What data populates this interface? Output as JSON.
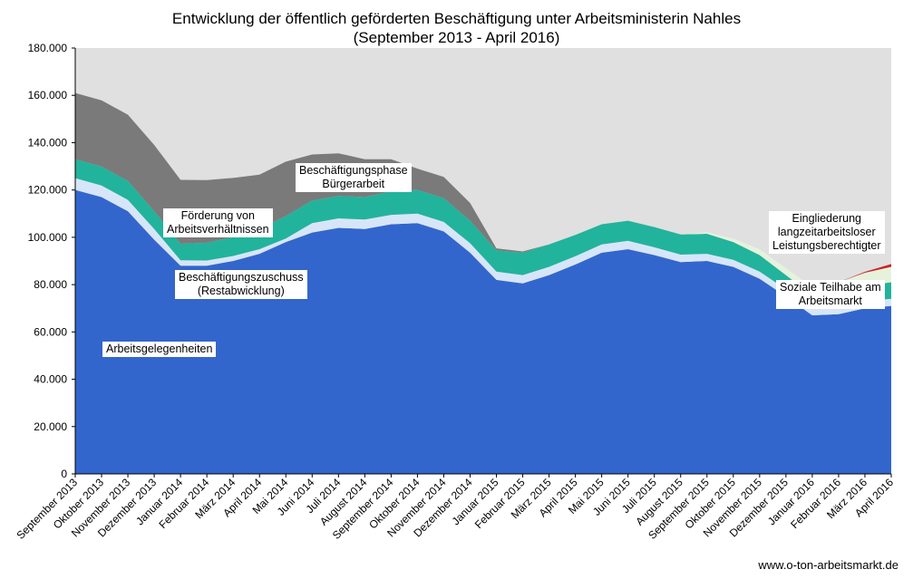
{
  "title": {
    "line1": "Entwicklung der öffentlich geförderten Beschäftigung unter Arbeitsministerin Nahles",
    "line2": "(September 2013 - April 2016)"
  },
  "source": "www.o-ton-arbeitsmarkt.de",
  "annotations": {
    "arbeitsgelegenheiten": "Arbeitsgelegenheiten",
    "bez_line1": "Beschäftigungszuschuss",
    "bez_line2": "(Restabwicklung)",
    "fav_line1": "Förderung von",
    "fav_line2": "Arbeitsverhältnissen",
    "bpb_line1": "Beschäftigungsphase",
    "bpb_line2": "Bürgerarbeit",
    "elb_line1": "Eingliederung",
    "elb_line2": "langzeitarbeitsloser",
    "elb_line3": "Leistungsberechtigter",
    "st_line1": "Soziale Teilhabe am",
    "st_line2": "Arbeitsmarkt"
  },
  "colors": {
    "plot_background": "#e0e0e0",
    "arbeitsgelegenheiten": "#3366cc",
    "beschaeftigungszuschuss": "#d6e6f8",
    "foerderung_arbeitsverhaeltnisse": "#22b39c",
    "buergerarbeit": "#7a7a7a",
    "eingliederung_langzeitarbeitsloser": "#e6f2dc",
    "soziale_teilhabe": "#cc2222"
  },
  "chart_data": {
    "type": "area",
    "stacked": true,
    "ylim": [
      0,
      180000
    ],
    "yticks": [
      0,
      20000,
      40000,
      60000,
      80000,
      100000,
      120000,
      140000,
      160000,
      180000
    ],
    "ytick_labels": [
      "0",
      "20.000",
      "40.000",
      "60.000",
      "80.000",
      "100.000",
      "120.000",
      "140.000",
      "160.000",
      "180.000"
    ],
    "grid": false,
    "legend": "none",
    "categories": [
      "September 2013",
      "Oktober 2013",
      "November 2013",
      "Dezember 2013",
      "Januar 2014",
      "Februar 2014",
      "März 2014",
      "April 2014",
      "Mai 2014",
      "Juni 2014",
      "Juli 2014",
      "August 2014",
      "September 2014",
      "Oktober 2014",
      "November 2014",
      "Dezember 2014",
      "Januar 2015",
      "Februar 2015",
      "März 2015",
      "April 2015",
      "Mai 2015",
      "Juni 2015",
      "Juli 2015",
      "August 2015",
      "September 2015",
      "Oktober 2015",
      "November 2015",
      "Dezember 2015",
      "Januar 2016",
      "Februar 2016",
      "März 2016",
      "April 2016"
    ],
    "series": [
      {
        "name": "Arbeitsgelegenheiten",
        "color_key": "arbeitsgelegenheiten",
        "values": [
          120000,
          117000,
          111000,
          99000,
          88000,
          88000,
          90000,
          93000,
          98000,
          102000,
          104000,
          103500,
          105500,
          106000,
          102500,
          93500,
          82000,
          80500,
          84000,
          88500,
          93500,
          95000,
          92500,
          89500,
          90000,
          87500,
          82500,
          75000,
          67000,
          67500,
          70000,
          71000
        ]
      },
      {
        "name": "Beschäftigungszuschuss",
        "color_key": "beschaeftigungszuschuss",
        "values": [
          5000,
          4900,
          4800,
          4500,
          2300,
          2200,
          2100,
          2000,
          1500,
          4000,
          4000,
          4000,
          4000,
          4000,
          4000,
          4000,
          3500,
          3500,
          3500,
          3500,
          3500,
          3500,
          3300,
          3200,
          3000,
          3000,
          3000,
          3000,
          3000,
          3000,
          3000,
          3000
        ]
      },
      {
        "name": "Förderung von Arbeitsverhältnissen",
        "color_key": "foerderung_arbeitsverhaeltnisse",
        "values": [
          8000,
          8000,
          8000,
          7500,
          7000,
          7500,
          8000,
          8500,
          9500,
          9500,
          9500,
          9500,
          10000,
          10000,
          10000,
          9500,
          9000,
          9500,
          9500,
          9000,
          8500,
          8500,
          8500,
          8500,
          8500,
          7500,
          7000,
          6000,
          5500,
          6000,
          6500,
          7000
        ]
      },
      {
        "name": "Beschäftigungsphase Bürgerarbeit",
        "color_key": "buergerarbeit",
        "values": [
          28000,
          28000,
          28000,
          28000,
          27000,
          26500,
          25000,
          23000,
          23000,
          19500,
          18000,
          16000,
          13500,
          9000,
          9000,
          7500,
          800,
          500,
          0,
          0,
          0,
          0,
          0,
          0,
          0,
          0,
          0,
          0,
          0,
          0,
          0,
          0
        ]
      },
      {
        "name": "Eingliederung langzeitarbeitsloser Leistungsberechtigter",
        "color_key": "eingliederung_langzeitarbeitsloser",
        "values": [
          0,
          0,
          0,
          0,
          0,
          0,
          0,
          0,
          0,
          0,
          0,
          0,
          0,
          0,
          0,
          0,
          0,
          0,
          0,
          0,
          0,
          0,
          0,
          0,
          600,
          1500,
          2500,
          3000,
          3500,
          4500,
          5500,
          6500
        ]
      },
      {
        "name": "Soziale Teilhabe am Arbeitsmarkt",
        "color_key": "soziale_teilhabe",
        "values": [
          0,
          0,
          0,
          0,
          0,
          0,
          0,
          0,
          0,
          0,
          0,
          0,
          0,
          0,
          0,
          0,
          0,
          0,
          0,
          0,
          0,
          0,
          0,
          0,
          0,
          0,
          0,
          0,
          0,
          0,
          400,
          1200
        ]
      }
    ]
  }
}
